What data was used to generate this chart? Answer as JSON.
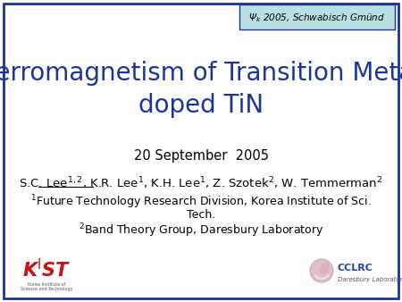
{
  "bg_color": "#ffffff",
  "border_color": "#1a3399",
  "title_text": "Ferromagnetism of Transition Metal\ndoped TiN",
  "title_color": "#1a3499",
  "title_fontsize": 20,
  "date_text": "20 September  2005",
  "corner_text": "Ψ$_k$ 2005, Schwabisch Gmünd",
  "corner_bg": "#b8e0e0",
  "author_fontsize": 9.5,
  "affil_fontsize": 9,
  "kist_color": "#cc1111",
  "cclrc_color": "#2244aa"
}
